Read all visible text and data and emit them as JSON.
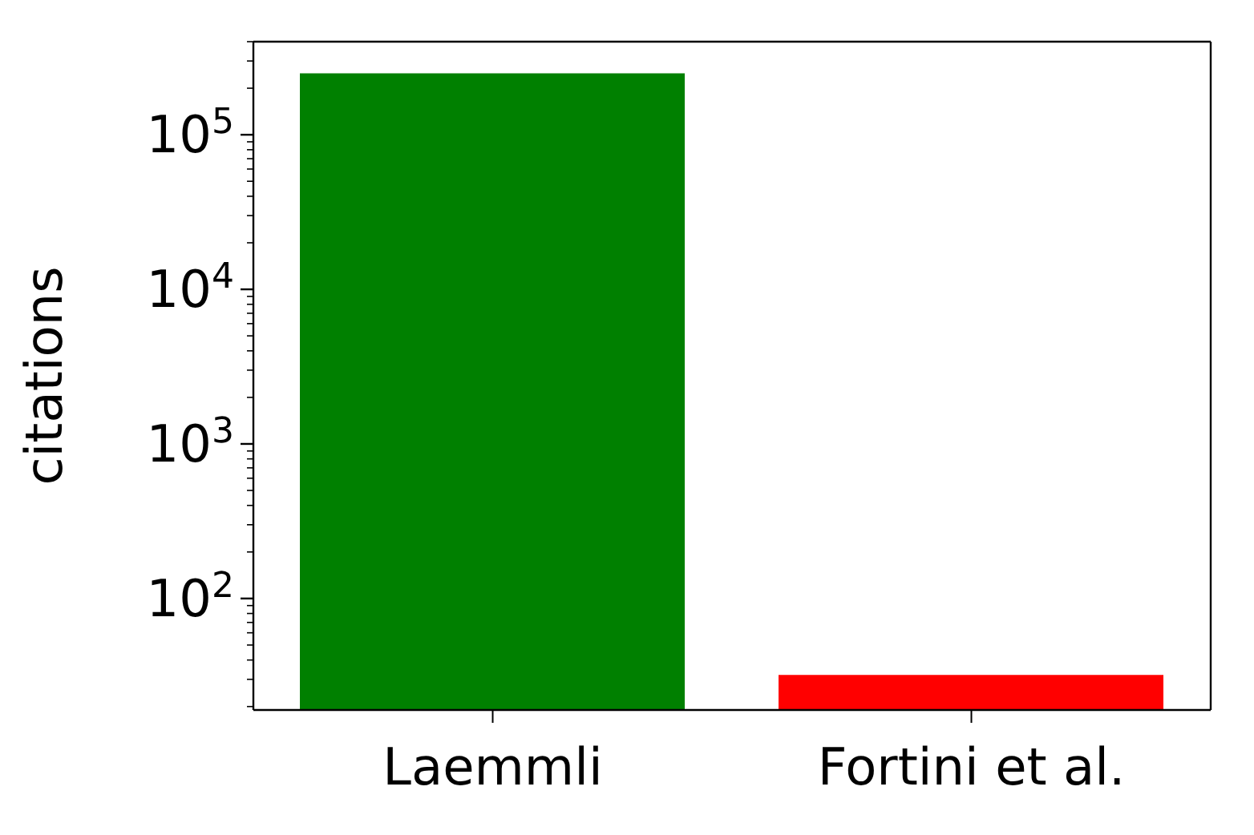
{
  "chart_data": {
    "type": "bar",
    "ylabel": "citations",
    "categories": [
      "Laemmli",
      "Fortini et al."
    ],
    "values": [
      250000,
      32
    ],
    "colors": [
      "#008000",
      "#ff0000"
    ],
    "log": true,
    "ylim": [
      19,
      400000
    ],
    "yticks": [
      {
        "value": 20,
        "label": null
      },
      {
        "value": 30,
        "label": null
      },
      {
        "value": 40,
        "label": null
      },
      {
        "value": 50,
        "label": null
      },
      {
        "value": 60,
        "label": null
      },
      {
        "value": 70,
        "label": null
      },
      {
        "value": 80,
        "label": null
      },
      {
        "value": 90,
        "label": null
      },
      {
        "value": 100,
        "label": "10$^{2}$"
      },
      {
        "value": 200,
        "label": null
      },
      {
        "value": 300,
        "label": null
      },
      {
        "value": 400,
        "label": null
      },
      {
        "value": 500,
        "label": null
      },
      {
        "value": 600,
        "label": null
      },
      {
        "value": 700,
        "label": null
      },
      {
        "value": 800,
        "label": null
      },
      {
        "value": 900,
        "label": null
      },
      {
        "value": 1000,
        "label": "10$^{3}$"
      },
      {
        "value": 2000,
        "label": null
      },
      {
        "value": 3000,
        "label": null
      },
      {
        "value": 4000,
        "label": null
      },
      {
        "value": 5000,
        "label": null
      },
      {
        "value": 6000,
        "label": null
      },
      {
        "value": 7000,
        "label": null
      },
      {
        "value": 8000,
        "label": null
      },
      {
        "value": 9000,
        "label": null
      },
      {
        "value": 10000,
        "label": "10$^{4}$"
      },
      {
        "value": 20000,
        "label": null
      },
      {
        "value": 30000,
        "label": null
      },
      {
        "value": 40000,
        "label": null
      },
      {
        "value": 50000,
        "label": null
      },
      {
        "value": 60000,
        "label": null
      },
      {
        "value": 70000,
        "label": null
      },
      {
        "value": 80000,
        "label": null
      },
      {
        "value": 90000,
        "label": null
      },
      {
        "value": 100000,
        "label": "10$^{5}$"
      },
      {
        "value": 200000,
        "label": null
      },
      {
        "value": 300000,
        "label": null
      },
      {
        "value": 400000,
        "label": null
      }
    ],
    "grid": false
  }
}
